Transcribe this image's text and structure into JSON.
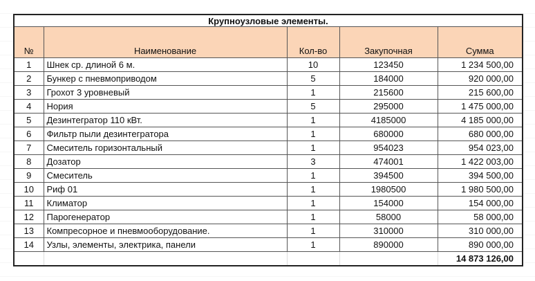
{
  "title": "Крупноузловые элементы.",
  "headers": {
    "no": "№",
    "name": "Наименование",
    "qty": "Кол-во",
    "price": "Закупочная",
    "sum": "Сумма"
  },
  "rows": [
    {
      "no": "1",
      "name": "Шнек ср. длиной 6 м.",
      "qty": "10",
      "price": "123450",
      "sum": "1 234 500,00"
    },
    {
      "no": "2",
      "name": "Бункер с пневмоприводом",
      "qty": "5",
      "price": "184000",
      "sum": "920 000,00"
    },
    {
      "no": "3",
      "name": "Грохот 3 уровневый",
      "qty": "1",
      "price": "215600",
      "sum": "215 600,00"
    },
    {
      "no": "4",
      "name": "Нория",
      "qty": "5",
      "price": "295000",
      "sum": "1 475 000,00"
    },
    {
      "no": "5",
      "name": "Дезинтегратор 110 кВт.",
      "qty": "1",
      "price": "4185000",
      "sum": "4 185 000,00"
    },
    {
      "no": "6",
      "name": "Фильтр пыли дезинтегратора",
      "qty": "1",
      "price": "680000",
      "sum": "680 000,00"
    },
    {
      "no": "7",
      "name": "Смеситель горизонтальный",
      "qty": "1",
      "price": "954023",
      "sum": "954 023,00"
    },
    {
      "no": "8",
      "name": "Дозатор",
      "qty": "3",
      "price": "474001",
      "sum": "1 422 003,00"
    },
    {
      "no": "9",
      "name": "Смеситель",
      "qty": "1",
      "price": "394500",
      "sum": "394 500,00"
    },
    {
      "no": "10",
      "name": "Риф 01",
      "qty": "1",
      "price": "1980500",
      "sum": "1 980 500,00"
    },
    {
      "no": "11",
      "name": "Климатор",
      "qty": "1",
      "price": "154000",
      "sum": "154 000,00"
    },
    {
      "no": "12",
      "name": "Парогенератор",
      "qty": "1",
      "price": "58000",
      "sum": "58 000,00"
    },
    {
      "no": "13",
      "name": "Компресорное и пневмооборудование.",
      "qty": "1",
      "price": "310000",
      "sum": "310 000,00"
    },
    {
      "no": "14",
      "name": "Узлы, элементы, электрика, панели",
      "qty": "1",
      "price": "890000",
      "sum": "890 000,00"
    }
  ],
  "total": "14 873 126,00"
}
